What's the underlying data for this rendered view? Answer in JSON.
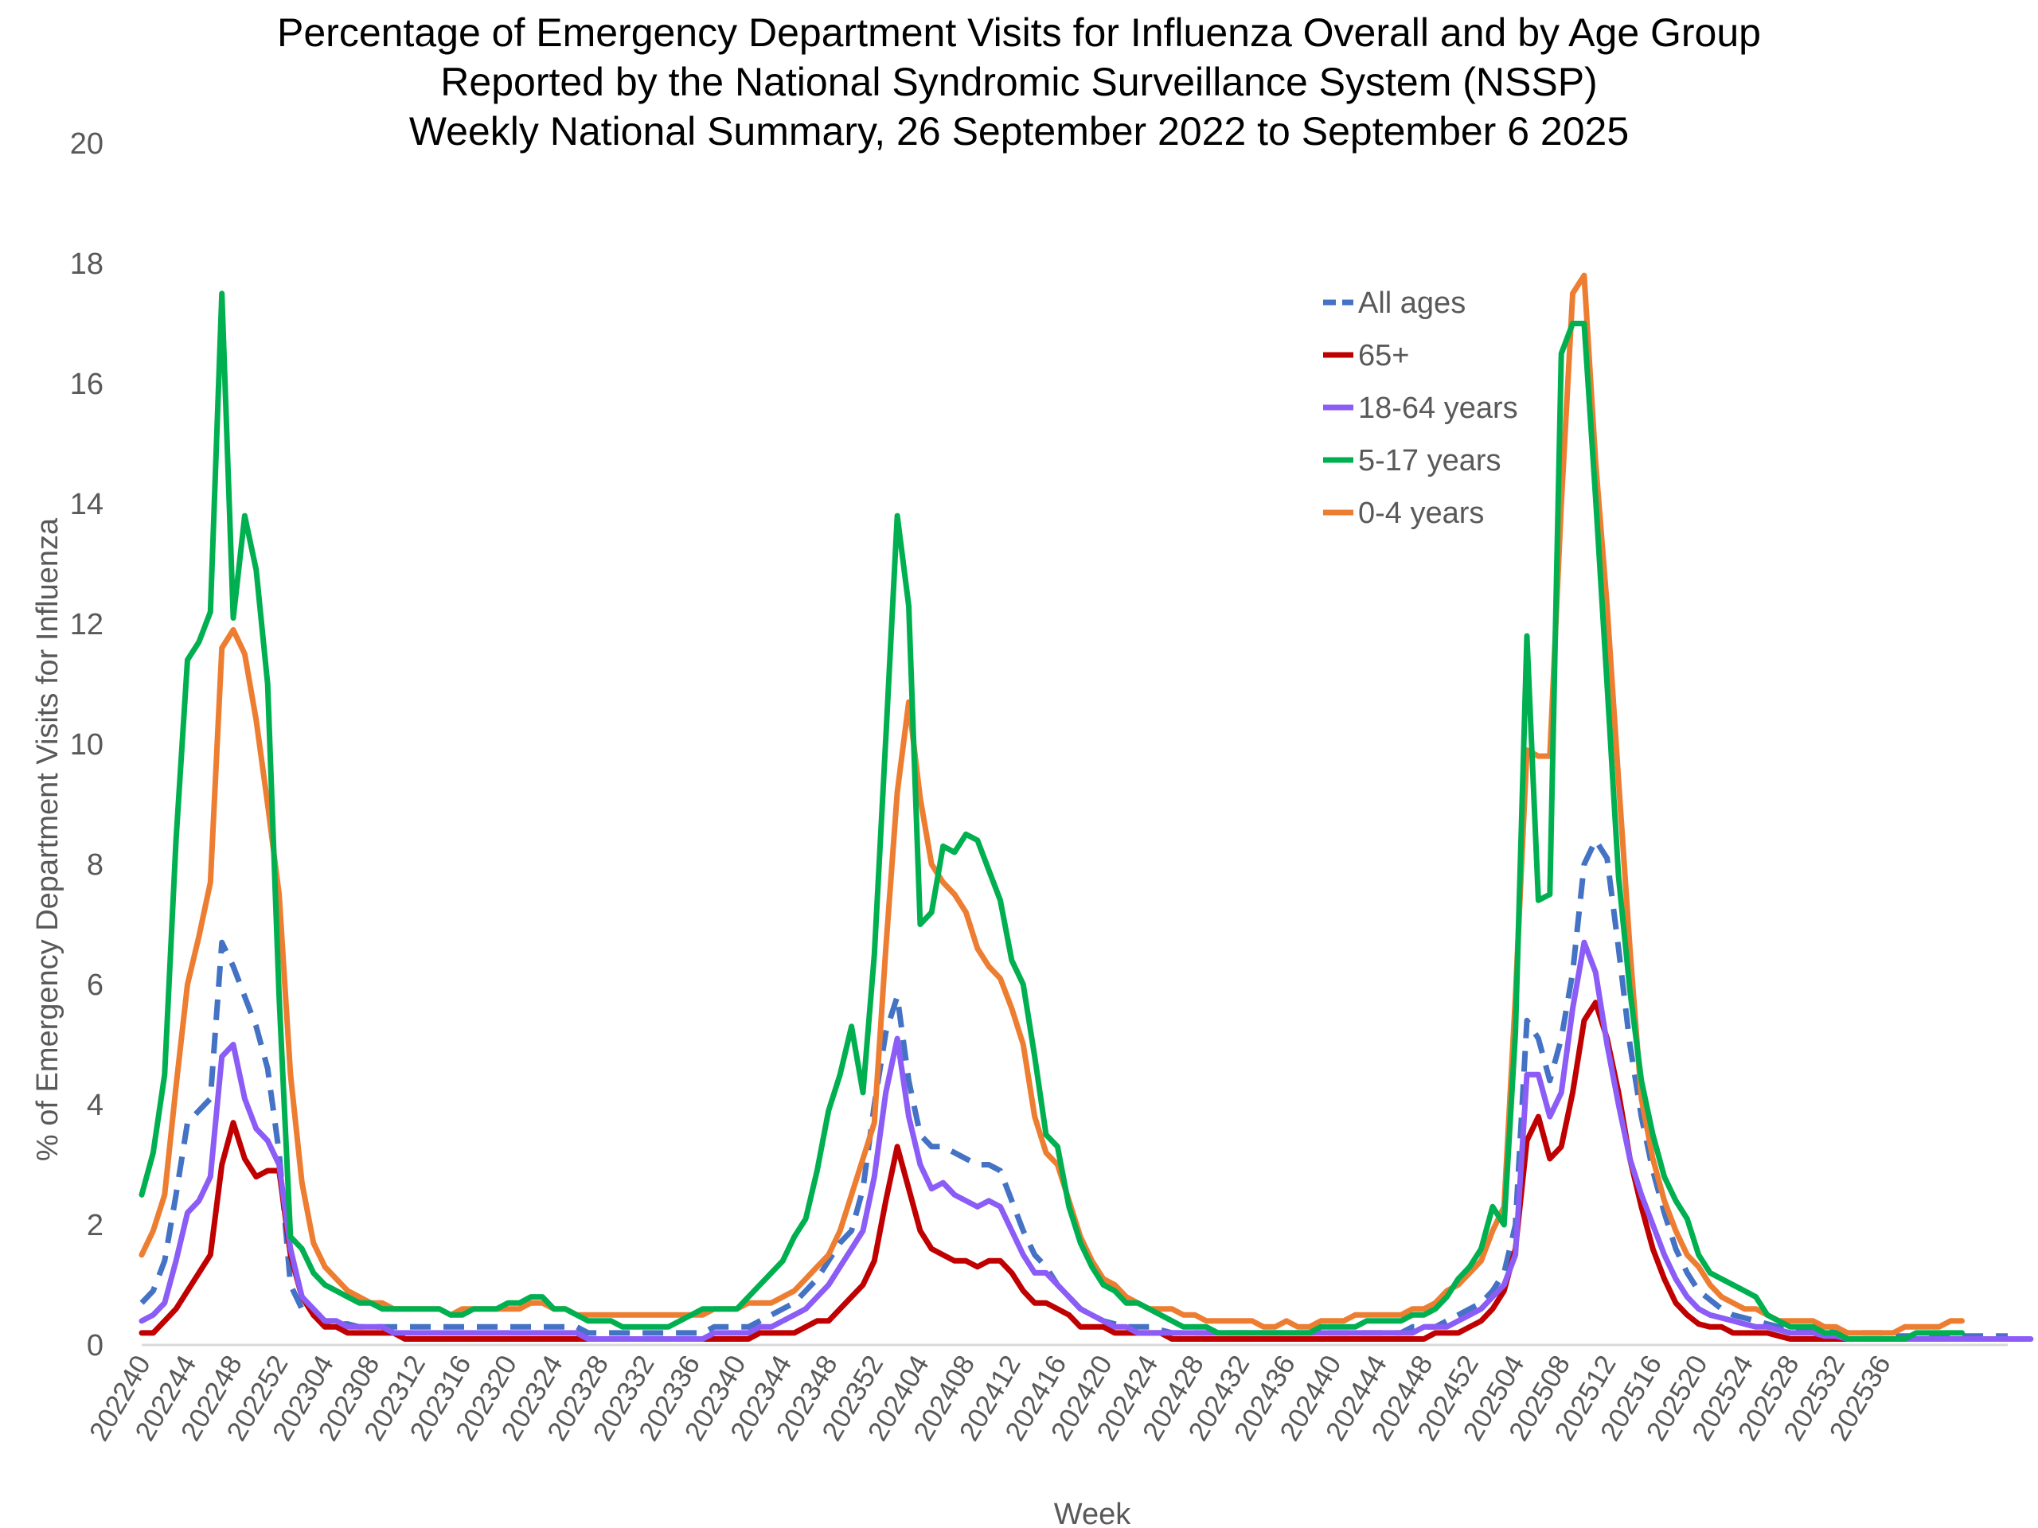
{
  "chart_data": {
    "type": "line",
    "title": [
      "Percentage of Emergency Department Visits for Influenza Overall and by Age Group",
      "Reported by the National Syndromic Surveillance System (NSSP)",
      "Weekly National Summary, 26 September 2022 to  September 6 2025"
    ],
    "xlabel": "Week",
    "ylabel": "% of Emergency Department Visits for Influenza",
    "ylim": [
      0,
      20
    ],
    "yticks": [
      0,
      2,
      4,
      6,
      8,
      10,
      12,
      14,
      16,
      18,
      20
    ],
    "grid": false,
    "legend_position": "top-right",
    "x_tick_labels": [
      "202240",
      "202244",
      "202248",
      "202252",
      "202304",
      "202308",
      "202312",
      "202316",
      "202320",
      "202324",
      "202328",
      "202332",
      "202336",
      "202340",
      "202344",
      "202348",
      "202352",
      "202404",
      "202408",
      "202412",
      "202416",
      "202420",
      "202424",
      "202428",
      "202432",
      "202436",
      "202440",
      "202444",
      "202448",
      "202452",
      "202504",
      "202508",
      "202512",
      "202516",
      "202520",
      "202524",
      "202528",
      "202532",
      "202536"
    ],
    "series": [
      {
        "name": "All ages",
        "color": "#4472C4",
        "dashed": true,
        "values": [
          0.7,
          0.9,
          1.4,
          2.5,
          3.7,
          3.9,
          4.1,
          6.7,
          6.3,
          5.8,
          5.3,
          4.6,
          3.2,
          1.0,
          0.6,
          0.5,
          0.4,
          0.35,
          0.35,
          0.3,
          0.3,
          0.3,
          0.3,
          0.3,
          0.3,
          0.3,
          0.3,
          0.3,
          0.3,
          0.3,
          0.3,
          0.3,
          0.3,
          0.3,
          0.3,
          0.3,
          0.3,
          0.3,
          0.3,
          0.2,
          0.2,
          0.2,
          0.2,
          0.2,
          0.2,
          0.2,
          0.2,
          0.2,
          0.2,
          0.2,
          0.3,
          0.3,
          0.3,
          0.3,
          0.4,
          0.5,
          0.6,
          0.7,
          0.9,
          1.1,
          1.4,
          1.7,
          1.9,
          2.6,
          4.0,
          5.2,
          5.8,
          4.4,
          3.5,
          3.3,
          3.3,
          3.2,
          3.1,
          3.0,
          3.0,
          2.9,
          2.4,
          1.9,
          1.5,
          1.3,
          1.0,
          0.8,
          0.6,
          0.5,
          0.4,
          0.35,
          0.3,
          0.3,
          0.3,
          0.25,
          0.2,
          0.2,
          0.2,
          0.2,
          0.2,
          0.2,
          0.2,
          0.2,
          0.2,
          0.2,
          0.2,
          0.2,
          0.2,
          0.2,
          0.2,
          0.2,
          0.2,
          0.2,
          0.2,
          0.2,
          0.2,
          0.3,
          0.3,
          0.3,
          0.4,
          0.5,
          0.6,
          0.7,
          0.9,
          1.2,
          2.0,
          5.4,
          5.1,
          4.4,
          5.1,
          6.2,
          8.0,
          8.4,
          8.1,
          6.6,
          5.0,
          3.8,
          2.9,
          2.2,
          1.6,
          1.2,
          0.9,
          0.75,
          0.6,
          0.5,
          0.45,
          0.4,
          0.35,
          0.3,
          0.3,
          0.25,
          0.25,
          0.25,
          0.2,
          0.2,
          0.2,
          0.2,
          0.2,
          0.15,
          0.15,
          0.15,
          0.15,
          0.15,
          0.15,
          0.15,
          0.15,
          0.15,
          0.15,
          0.15
        ]
      },
      {
        "name": "65+",
        "color": "#C00000",
        "dashed": false,
        "values": [
          0.2,
          0.2,
          0.4,
          0.6,
          0.9,
          1.2,
          1.5,
          3.0,
          3.7,
          3.1,
          2.8,
          2.9,
          2.9,
          1.5,
          0.8,
          0.5,
          0.3,
          0.3,
          0.2,
          0.2,
          0.2,
          0.2,
          0.2,
          0.1,
          0.1,
          0.1,
          0.1,
          0.1,
          0.1,
          0.1,
          0.1,
          0.1,
          0.1,
          0.1,
          0.1,
          0.1,
          0.1,
          0.1,
          0.1,
          0.1,
          0.1,
          0.1,
          0.1,
          0.1,
          0.1,
          0.1,
          0.1,
          0.1,
          0.1,
          0.1,
          0.1,
          0.1,
          0.1,
          0.1,
          0.2,
          0.2,
          0.2,
          0.2,
          0.3,
          0.4,
          0.4,
          0.6,
          0.8,
          1.0,
          1.4,
          2.4,
          3.3,
          2.6,
          1.9,
          1.6,
          1.5,
          1.4,
          1.4,
          1.3,
          1.4,
          1.4,
          1.2,
          0.9,
          0.7,
          0.7,
          0.6,
          0.5,
          0.3,
          0.3,
          0.3,
          0.2,
          0.2,
          0.2,
          0.2,
          0.2,
          0.1,
          0.1,
          0.1,
          0.1,
          0.1,
          0.1,
          0.1,
          0.1,
          0.1,
          0.1,
          0.1,
          0.1,
          0.1,
          0.1,
          0.1,
          0.1,
          0.1,
          0.1,
          0.1,
          0.1,
          0.1,
          0.1,
          0.1,
          0.2,
          0.2,
          0.2,
          0.3,
          0.4,
          0.6,
          0.9,
          1.6,
          3.4,
          3.8,
          3.1,
          3.3,
          4.2,
          5.4,
          5.7,
          5.1,
          4.2,
          3.1,
          2.3,
          1.6,
          1.1,
          0.7,
          0.5,
          0.35,
          0.3,
          0.3,
          0.2,
          0.2,
          0.2,
          0.2,
          0.15,
          0.1,
          0.1,
          0.1,
          0.1,
          0.1,
          0.1,
          0.1,
          0.1,
          0.1,
          0.1,
          0.1,
          0.1,
          0.1,
          0.1,
          0.1,
          0.1,
          0.1,
          0.1,
          0.1,
          0.1
        ]
      },
      {
        "name": "18-64 years",
        "color": "#8B5CF6",
        "dashed": false,
        "values": [
          0.4,
          0.5,
          0.7,
          1.4,
          2.2,
          2.4,
          2.8,
          4.8,
          5.0,
          4.1,
          3.6,
          3.4,
          3.0,
          1.6,
          0.8,
          0.6,
          0.4,
          0.4,
          0.3,
          0.3,
          0.3,
          0.3,
          0.2,
          0.2,
          0.2,
          0.2,
          0.2,
          0.2,
          0.2,
          0.2,
          0.2,
          0.2,
          0.2,
          0.2,
          0.2,
          0.2,
          0.2,
          0.2,
          0.2,
          0.1,
          0.1,
          0.1,
          0.1,
          0.1,
          0.1,
          0.1,
          0.1,
          0.1,
          0.1,
          0.1,
          0.2,
          0.2,
          0.2,
          0.2,
          0.3,
          0.3,
          0.4,
          0.5,
          0.6,
          0.8,
          1.0,
          1.3,
          1.6,
          1.9,
          2.8,
          4.2,
          5.1,
          3.8,
          3.0,
          2.6,
          2.7,
          2.5,
          2.4,
          2.3,
          2.4,
          2.3,
          1.9,
          1.5,
          1.2,
          1.2,
          1.0,
          0.8,
          0.6,
          0.5,
          0.4,
          0.3,
          0.3,
          0.2,
          0.2,
          0.2,
          0.2,
          0.2,
          0.2,
          0.2,
          0.2,
          0.2,
          0.2,
          0.2,
          0.2,
          0.2,
          0.2,
          0.2,
          0.2,
          0.2,
          0.2,
          0.2,
          0.2,
          0.2,
          0.2,
          0.2,
          0.2,
          0.2,
          0.3,
          0.3,
          0.3,
          0.4,
          0.5,
          0.6,
          0.8,
          1.0,
          1.5,
          4.5,
          4.5,
          3.8,
          4.2,
          5.6,
          6.7,
          6.2,
          5.0,
          4.0,
          3.1,
          2.5,
          2.0,
          1.5,
          1.1,
          0.8,
          0.6,
          0.5,
          0.45,
          0.4,
          0.35,
          0.3,
          0.3,
          0.25,
          0.2,
          0.2,
          0.2,
          0.15,
          0.15,
          0.1,
          0.1,
          0.1,
          0.1,
          0.1,
          0.1,
          0.1,
          0.1,
          0.1,
          0.1,
          0.1,
          0.1,
          0.1,
          0.1,
          0.1,
          0.1,
          0.1
        ]
      },
      {
        "name": "5-17 years",
        "color": "#00B050",
        "dashed": false,
        "values": [
          2.5,
          3.2,
          4.5,
          8.4,
          11.4,
          11.7,
          12.2,
          17.5,
          12.1,
          13.8,
          12.9,
          11.0,
          5.8,
          1.8,
          1.6,
          1.2,
          1.0,
          0.9,
          0.8,
          0.7,
          0.7,
          0.6,
          0.6,
          0.6,
          0.6,
          0.6,
          0.6,
          0.5,
          0.5,
          0.6,
          0.6,
          0.6,
          0.7,
          0.7,
          0.8,
          0.8,
          0.6,
          0.6,
          0.5,
          0.4,
          0.4,
          0.4,
          0.3,
          0.3,
          0.3,
          0.3,
          0.3,
          0.4,
          0.5,
          0.6,
          0.6,
          0.6,
          0.6,
          0.8,
          1.0,
          1.2,
          1.4,
          1.8,
          2.1,
          2.9,
          3.9,
          4.5,
          5.3,
          4.2,
          6.5,
          10.1,
          13.8,
          12.3,
          7.0,
          7.2,
          8.3,
          8.2,
          8.5,
          8.4,
          7.9,
          7.4,
          6.4,
          6.0,
          4.8,
          3.5,
          3.3,
          2.3,
          1.7,
          1.3,
          1.0,
          0.9,
          0.7,
          0.7,
          0.6,
          0.5,
          0.4,
          0.3,
          0.3,
          0.3,
          0.2,
          0.2,
          0.2,
          0.2,
          0.2,
          0.2,
          0.2,
          0.2,
          0.2,
          0.3,
          0.3,
          0.3,
          0.3,
          0.4,
          0.4,
          0.4,
          0.4,
          0.5,
          0.5,
          0.6,
          0.8,
          1.1,
          1.3,
          1.6,
          2.3,
          2.0,
          5.2,
          11.8,
          7.4,
          7.5,
          16.5,
          17.0,
          17.0,
          14.1,
          11.0,
          7.8,
          5.9,
          4.4,
          3.5,
          2.8,
          2.4,
          2.1,
          1.5,
          1.2,
          1.1,
          1.0,
          0.9,
          0.8,
          0.5,
          0.4,
          0.3,
          0.3,
          0.3,
          0.2,
          0.2,
          0.1,
          0.1,
          0.1,
          0.1,
          0.1,
          0.1,
          0.2,
          0.2,
          0.2,
          0.2,
          0.2
        ]
      },
      {
        "name": "0-4 years",
        "color": "#ED7D31",
        "dashed": false,
        "values": [
          1.5,
          1.9,
          2.5,
          4.3,
          6.0,
          6.8,
          7.7,
          11.6,
          11.9,
          11.5,
          10.4,
          9.0,
          7.5,
          4.5,
          2.7,
          1.7,
          1.3,
          1.1,
          0.9,
          0.8,
          0.7,
          0.7,
          0.6,
          0.6,
          0.6,
          0.6,
          0.6,
          0.5,
          0.6,
          0.6,
          0.6,
          0.6,
          0.6,
          0.6,
          0.7,
          0.7,
          0.6,
          0.6,
          0.5,
          0.5,
          0.5,
          0.5,
          0.5,
          0.5,
          0.5,
          0.5,
          0.5,
          0.5,
          0.5,
          0.5,
          0.6,
          0.6,
          0.6,
          0.7,
          0.7,
          0.7,
          0.8,
          0.9,
          1.1,
          1.3,
          1.5,
          1.9,
          2.5,
          3.1,
          3.7,
          6.6,
          9.2,
          10.7,
          9.1,
          8.0,
          7.7,
          7.5,
          7.2,
          6.6,
          6.3,
          6.1,
          5.6,
          5.0,
          3.8,
          3.2,
          3.0,
          2.4,
          1.8,
          1.4,
          1.1,
          1.0,
          0.8,
          0.7,
          0.6,
          0.6,
          0.6,
          0.5,
          0.5,
          0.4,
          0.4,
          0.4,
          0.4,
          0.4,
          0.3,
          0.3,
          0.4,
          0.3,
          0.3,
          0.4,
          0.4,
          0.4,
          0.5,
          0.5,
          0.5,
          0.5,
          0.5,
          0.6,
          0.6,
          0.7,
          0.9,
          1.0,
          1.2,
          1.4,
          1.9,
          2.3,
          5.8,
          9.9,
          9.8,
          9.8,
          14.0,
          17.5,
          17.8,
          14.7,
          12.3,
          9.4,
          6.6,
          4.1,
          3.1,
          2.4,
          1.9,
          1.5,
          1.3,
          1.0,
          0.8,
          0.7,
          0.6,
          0.6,
          0.5,
          0.4,
          0.4,
          0.4,
          0.4,
          0.3,
          0.3,
          0.2,
          0.2,
          0.2,
          0.2,
          0.2,
          0.3,
          0.3,
          0.3,
          0.3,
          0.4,
          0.4
        ]
      }
    ]
  }
}
